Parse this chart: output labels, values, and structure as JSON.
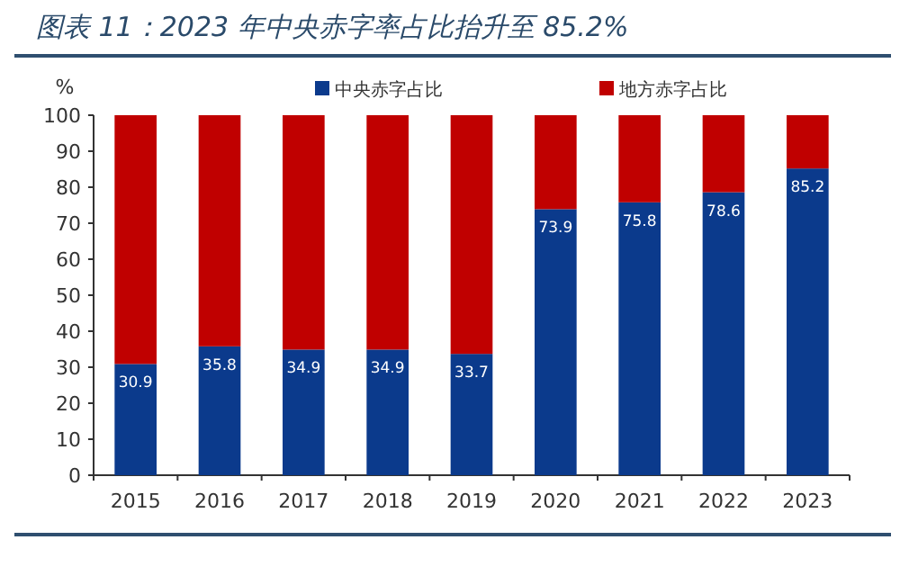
{
  "chart_data": {
    "type": "bar",
    "stacked": true,
    "title": "图表 11：2023 年中央赤字率占比抬升至 85.2%",
    "ylabel": "%",
    "categories": [
      "2015",
      "2016",
      "2017",
      "2018",
      "2019",
      "2020",
      "2021",
      "2022",
      "2023"
    ],
    "series": [
      {
        "name": "中央赤字占比",
        "color": "#0b3a8c",
        "values": [
          30.9,
          35.8,
          34.9,
          34.9,
          33.7,
          73.9,
          75.8,
          78.6,
          85.2
        ],
        "value_labels": [
          "30.9",
          "35.8",
          "34.9",
          "34.9",
          "33.7",
          "73.9",
          "75.8",
          "78.6",
          "85.2"
        ]
      },
      {
        "name": "地方赤字占比",
        "color": "#c00000",
        "values": [
          69.1,
          64.2,
          65.1,
          65.1,
          66.3,
          26.1,
          24.2,
          21.4,
          14.8
        ]
      }
    ],
    "ylim": [
      0,
      100
    ],
    "yticks": [
      0,
      10,
      20,
      30,
      40,
      50,
      60,
      70,
      80,
      90,
      100
    ],
    "legend": "top",
    "grid": false
  }
}
